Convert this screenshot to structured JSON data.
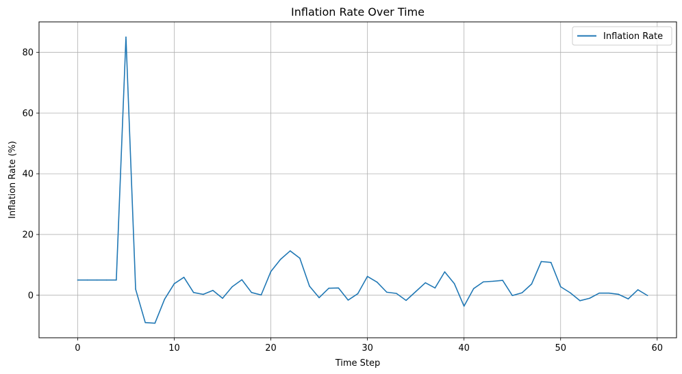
{
  "chart_data": {
    "type": "line",
    "title": "Inflation Rate Over Time",
    "xlabel": "Time Step",
    "ylabel": "Inflation Rate (%)",
    "xlim": [
      -4,
      62
    ],
    "ylim": [
      -14,
      90
    ],
    "xticks": [
      0,
      10,
      20,
      30,
      40,
      50,
      60
    ],
    "yticks": [
      0,
      20,
      40,
      60,
      80
    ],
    "grid": true,
    "legend_position": "top-right",
    "series": [
      {
        "name": "Inflation Rate",
        "color": "#1f77b4",
        "x": [
          0,
          1,
          2,
          3,
          4,
          5,
          6,
          7,
          8,
          9,
          10,
          11,
          12,
          13,
          14,
          15,
          16,
          17,
          18,
          19,
          20,
          21,
          22,
          23,
          24,
          25,
          26,
          27,
          28,
          29,
          30,
          31,
          32,
          33,
          34,
          35,
          36,
          37,
          38,
          39,
          40,
          41,
          42,
          43,
          44,
          45,
          46,
          47,
          48,
          49,
          50,
          51,
          52,
          53,
          54,
          55,
          56,
          57,
          58,
          59
        ],
        "values": [
          5,
          5,
          5,
          5,
          5,
          85,
          2,
          -9,
          -9.2,
          -1.3,
          3.8,
          5.9,
          0.9,
          0.3,
          1.6,
          -1,
          2.8,
          5.1,
          0.9,
          0.1,
          7.8,
          11.8,
          14.6,
          12.2,
          3,
          -0.8,
          2.3,
          2.4,
          -1.6,
          0.5,
          6.2,
          4.3,
          1,
          0.6,
          -1.7,
          1.2,
          4.1,
          2.4,
          7.7,
          3.8,
          -3.6,
          2.2,
          4.4,
          4.6,
          4.9,
          -0.1,
          0.8,
          3.7,
          11.1,
          10.8,
          2.8,
          0.8,
          -1.8,
          -1,
          0.7,
          0.7,
          0.3,
          -1.2,
          1.8,
          -0.1
        ]
      }
    ]
  }
}
